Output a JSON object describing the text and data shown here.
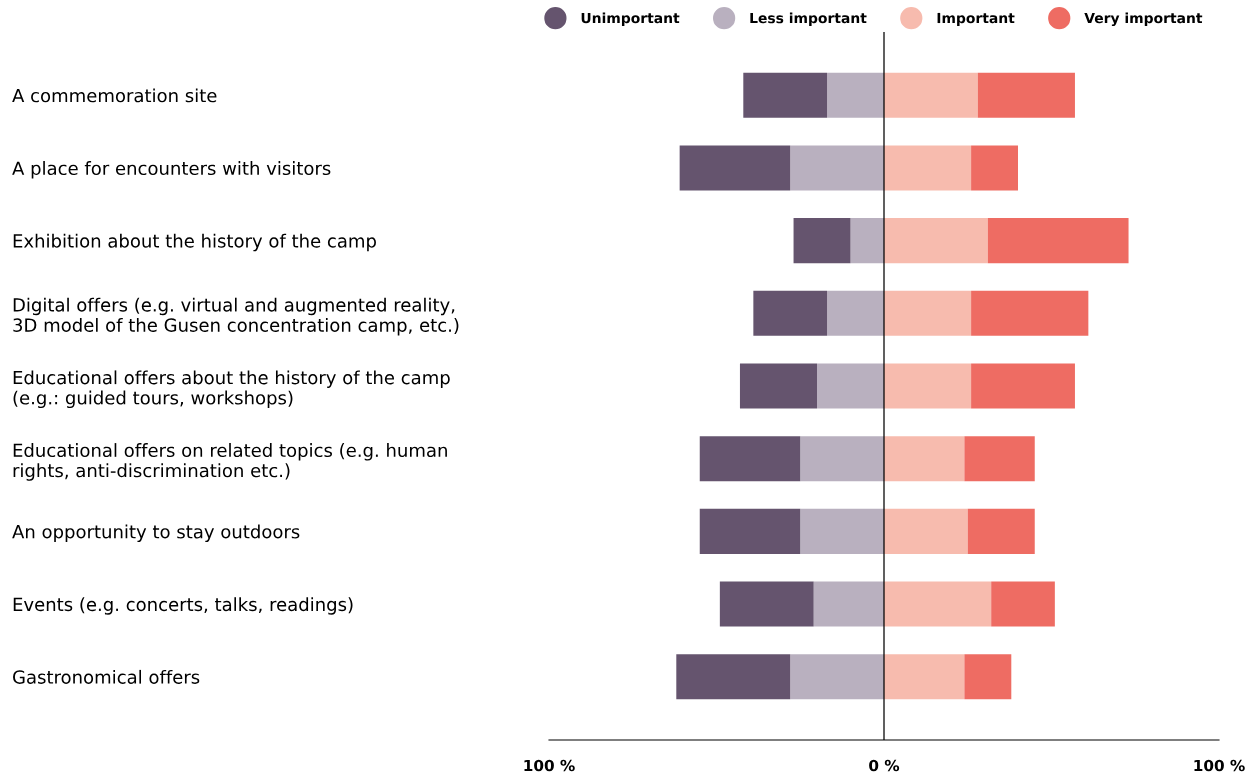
{
  "chart_data": {
    "type": "bar",
    "orientation": "horizontal",
    "stacked": true,
    "categories": [
      "A commemoration site",
      "A place for encounters with visitors",
      "Exhibition about the history of the camp",
      "Digital offers (e.g. virtual and augmented reality,\n3D model of the Gusen concentration camp, etc.)",
      "Educational offers about the history of the camp\n(e.g.: guided tours, workshops)",
      "Educational offers on related topics (e.g. human\nrights, anti-discrimination etc.)",
      "An opportunity to stay outdoors",
      "Events (e.g. concerts, talks, readings)",
      "Gastronomical offers"
    ],
    "series": [
      {
        "name": "Less important",
        "color": "#b9b0bf",
        "values": [
          -17,
          -28,
          -10,
          -17,
          -20,
          -25,
          -25,
          -21,
          -28
        ]
      },
      {
        "name": "Unimportant",
        "color": "#65546e",
        "values": [
          -25,
          -33,
          -17,
          -22,
          -23,
          -30,
          -30,
          -28,
          -34
        ]
      },
      {
        "name": "Important",
        "color": "#f7bbae",
        "values": [
          28,
          26,
          31,
          26,
          26,
          24,
          25,
          32,
          24
        ]
      },
      {
        "name": "Very important",
        "color": "#ee6c63",
        "values": [
          29,
          14,
          42,
          35,
          31,
          21,
          20,
          19,
          14
        ]
      }
    ],
    "xlim": [
      -100,
      100
    ],
    "xticks": [
      {
        "value": -100,
        "label": "100 %"
      },
      {
        "value": 0,
        "label": "0 %"
      },
      {
        "value": 100,
        "label": "100 %"
      }
    ],
    "ref_lines": [
      {
        "axis": "x",
        "value": 0,
        "color": "#000000"
      }
    ],
    "legend": "top right",
    "grid": false
  }
}
